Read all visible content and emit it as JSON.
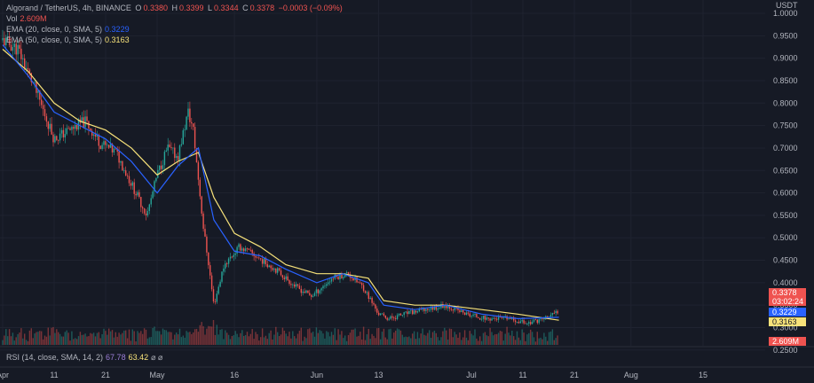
{
  "header": {
    "symbol": "Algorand / TetherUS, 4h, BINANCE",
    "o_label": "O",
    "o_value": "0.3380",
    "h_label": "H",
    "h_value": "0.3399",
    "l_label": "L",
    "l_value": "0.3344",
    "c_label": "C",
    "c_value": "0.3378",
    "change": "−0.0003 (−0.09%)",
    "currency": "USDT"
  },
  "indicators": {
    "vol_label": "Vol",
    "vol_value": "2.609M",
    "ema20_label": "EMA (20, close, 0, SMA, 5)",
    "ema20_value": "0.3229",
    "ema50_label": "EMA (50, close, 0, SMA, 5)",
    "ema50_value": "0.3163",
    "rsi_label": "RSI (14, close, SMA, 14, 2)",
    "rsi_value1": "67.78",
    "rsi_value2": "63.42",
    "rsi_icons": "⌀ ⌀"
  },
  "badges": {
    "price": "0.3378",
    "countdown": "03:02:24",
    "ema20": "0.3229",
    "ema50": "0.3163",
    "volume": "2.609M"
  },
  "colors": {
    "background": "#161a25",
    "up": "#26a69a",
    "down": "#ef5350",
    "ema20": "#2962ff",
    "ema50": "#f7e27a",
    "text": "#b2b5be"
  },
  "chart_data": {
    "type": "line",
    "title": "",
    "xlabel": "",
    "ylabel": "",
    "ylim": [
      0.2595,
      1.0297
    ],
    "y_ticks": [
      "1.0000",
      "0.9500",
      "0.9000",
      "0.8500",
      "0.8000",
      "0.7500",
      "0.7000",
      "0.6500",
      "0.6000",
      "0.5500",
      "0.5000",
      "0.4500",
      "0.4000",
      "0.3500",
      "0.3000",
      "0.2500"
    ],
    "x_ticks": [
      "Apr",
      "11",
      "21",
      "May",
      "16",
      "Jun",
      "13",
      "Jul",
      "11",
      "21",
      "Aug",
      "15"
    ],
    "x_tick_dates": [
      "2022-04-01",
      "2022-04-11",
      "2022-04-21",
      "2022-05-01",
      "2022-05-16",
      "2022-06-01",
      "2022-06-13",
      "2022-07-01",
      "2022-07-11",
      "2022-07-21",
      "2022-08-01",
      "2022-08-15"
    ],
    "price_dates": [
      "2022-04-01",
      "2022-04-04",
      "2022-04-07",
      "2022-04-09",
      "2022-04-11",
      "2022-04-14",
      "2022-04-17",
      "2022-04-20",
      "2022-04-23",
      "2022-04-26",
      "2022-04-29",
      "2022-05-01",
      "2022-05-03",
      "2022-05-05",
      "2022-05-06",
      "2022-05-07",
      "2022-05-08",
      "2022-05-09",
      "2022-05-10",
      "2022-05-11",
      "2022-05-12",
      "2022-05-14",
      "2022-05-17",
      "2022-05-20",
      "2022-05-24",
      "2022-05-28",
      "2022-05-31",
      "2022-06-04",
      "2022-06-07",
      "2022-06-10",
      "2022-06-12",
      "2022-06-13",
      "2022-06-15",
      "2022-06-18",
      "2022-06-22",
      "2022-06-26",
      "2022-06-30",
      "2022-07-04",
      "2022-07-08",
      "2022-07-12",
      "2022-07-15",
      "2022-07-17",
      "2022-07-18"
    ],
    "price": [
      0.94,
      0.92,
      0.84,
      0.78,
      0.72,
      0.74,
      0.76,
      0.71,
      0.69,
      0.62,
      0.55,
      0.64,
      0.7,
      0.68,
      0.73,
      0.78,
      0.74,
      0.63,
      0.52,
      0.44,
      0.35,
      0.44,
      0.48,
      0.46,
      0.43,
      0.39,
      0.37,
      0.41,
      0.42,
      0.39,
      0.35,
      0.33,
      0.32,
      0.33,
      0.34,
      0.35,
      0.33,
      0.32,
      0.32,
      0.31,
      0.32,
      0.33,
      0.3378
    ],
    "series": [
      {
        "name": "EMA (20, close, 0, SMA, 5)",
        "color": "#2962ff",
        "dates": [
          "2022-04-01",
          "2022-04-06",
          "2022-04-11",
          "2022-04-16",
          "2022-04-21",
          "2022-04-26",
          "2022-05-01",
          "2022-05-05",
          "2022-05-09",
          "2022-05-12",
          "2022-05-16",
          "2022-05-21",
          "2022-05-26",
          "2022-06-01",
          "2022-06-06",
          "2022-06-11",
          "2022-06-14",
          "2022-06-20",
          "2022-06-26",
          "2022-07-03",
          "2022-07-10",
          "2022-07-18"
        ],
        "values": [
          0.93,
          0.86,
          0.78,
          0.75,
          0.72,
          0.67,
          0.6,
          0.66,
          0.7,
          0.54,
          0.47,
          0.46,
          0.43,
          0.4,
          0.42,
          0.4,
          0.35,
          0.34,
          0.35,
          0.33,
          0.32,
          0.3229
        ]
      },
      {
        "name": "EMA (50, close, 0, SMA, 5)",
        "color": "#f7e27a",
        "dates": [
          "2022-04-01",
          "2022-04-06",
          "2022-04-11",
          "2022-04-16",
          "2022-04-21",
          "2022-04-26",
          "2022-05-01",
          "2022-05-05",
          "2022-05-09",
          "2022-05-12",
          "2022-05-16",
          "2022-05-21",
          "2022-05-26",
          "2022-06-01",
          "2022-06-06",
          "2022-06-11",
          "2022-06-14",
          "2022-06-20",
          "2022-06-26",
          "2022-07-03",
          "2022-07-10",
          "2022-07-18"
        ],
        "values": [
          0.92,
          0.87,
          0.8,
          0.76,
          0.74,
          0.7,
          0.64,
          0.67,
          0.69,
          0.59,
          0.51,
          0.48,
          0.44,
          0.42,
          0.42,
          0.41,
          0.36,
          0.35,
          0.35,
          0.34,
          0.33,
          0.3163
        ]
      }
    ]
  }
}
